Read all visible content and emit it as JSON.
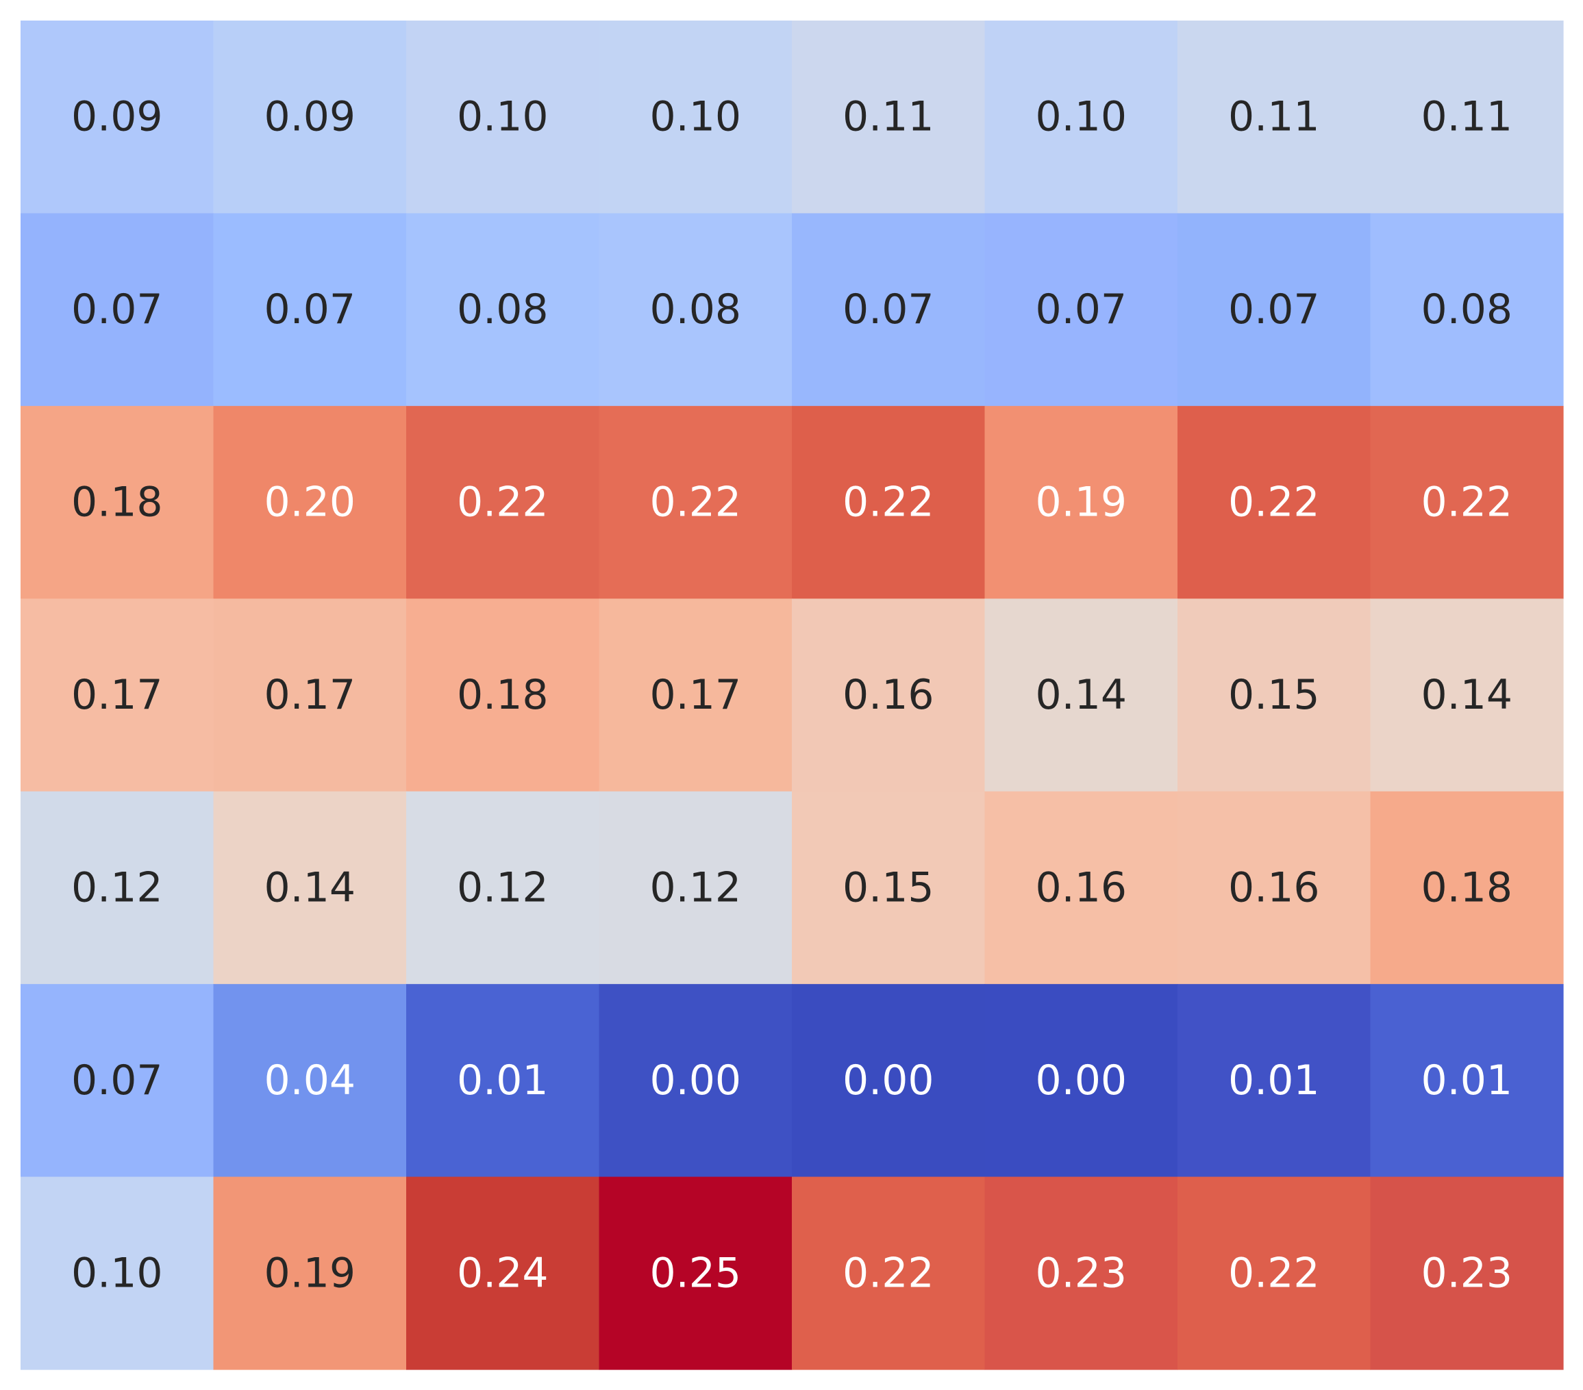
{
  "chart_data": {
    "type": "heatmap",
    "title": "",
    "xlabel": "",
    "ylabel": "",
    "colormap": "coolwarm",
    "value_range": [
      0.0,
      0.25
    ],
    "grid": false,
    "legend": "none",
    "values": [
      [
        0.09,
        0.09,
        0.1,
        0.1,
        0.11,
        0.1,
        0.11,
        0.11
      ],
      [
        0.07,
        0.07,
        0.08,
        0.08,
        0.07,
        0.07,
        0.07,
        0.08
      ],
      [
        0.18,
        0.2,
        0.22,
        0.22,
        0.22,
        0.19,
        0.22,
        0.22
      ],
      [
        0.17,
        0.17,
        0.18,
        0.17,
        0.16,
        0.14,
        0.15,
        0.14
      ],
      [
        0.12,
        0.14,
        0.12,
        0.12,
        0.15,
        0.16,
        0.16,
        0.18
      ],
      [
        0.07,
        0.04,
        0.01,
        0.0,
        0.0,
        0.0,
        0.01,
        0.01
      ],
      [
        0.1,
        0.19,
        0.24,
        0.25,
        0.22,
        0.23,
        0.22,
        0.23
      ]
    ],
    "labels": [
      [
        "0.09",
        "0.09",
        "0.10",
        "0.10",
        "0.11",
        "0.10",
        "0.11",
        "0.11"
      ],
      [
        "0.07",
        "0.07",
        "0.08",
        "0.08",
        "0.07",
        "0.07",
        "0.07",
        "0.08"
      ],
      [
        "0.18",
        "0.20",
        "0.22",
        "0.22",
        "0.22",
        "0.19",
        "0.22",
        "0.22"
      ],
      [
        "0.17",
        "0.17",
        "0.18",
        "0.17",
        "0.16",
        "0.14",
        "0.15",
        "0.14"
      ],
      [
        "0.12",
        "0.14",
        "0.12",
        "0.12",
        "0.15",
        "0.16",
        "0.16",
        "0.18"
      ],
      [
        "0.07",
        "0.04",
        "0.01",
        "0.00",
        "0.00",
        "0.00",
        "0.01",
        "0.01"
      ],
      [
        "0.10",
        "0.19",
        "0.24",
        "0.25",
        "0.22",
        "0.23",
        "0.22",
        "0.23"
      ]
    ],
    "colors": [
      [
        "#afc8fb",
        "#b8cff8",
        "#c2d3f4",
        "#c2d4f4",
        "#ccd7ee",
        "#bfd2f6",
        "#cad7ef",
        "#cad7ef"
      ],
      [
        "#94b3fd",
        "#9bbcff",
        "#a5c3fe",
        "#a9c5fd",
        "#98b7fd",
        "#97b4fe",
        "#92b3fc",
        "#9fbdfe"
      ],
      [
        "#f5a586",
        "#ef8769",
        "#e16752",
        "#e56d56",
        "#de5f4b",
        "#f29072",
        "#de5f4c",
        "#e16752"
      ],
      [
        "#f6bca3",
        "#f5baa0",
        "#f7ae91",
        "#f6b89c",
        "#f2c8b5",
        "#e6d7cf",
        "#f0cbba",
        "#ebd4c8"
      ],
      [
        "#d1dae9",
        "#ecd3c6",
        "#d7dce5",
        "#d8dbe3",
        "#f2c9b6",
        "#f6bfa6",
        "#f5c0a8",
        "#f6aa8b"
      ],
      [
        "#95b4fd",
        "#7293ee",
        "#4a63d3",
        "#3e51c4",
        "#3a4cc0",
        "#3a4cc1",
        "#4152c6",
        "#4a61d2"
      ],
      [
        "#c2d4f4",
        "#f29676",
        "#c93d35",
        "#b50426",
        "#df604c",
        "#d9554a",
        "#de5f4c",
        "#d6534a"
      ]
    ],
    "text_colors": [
      [
        "#262626",
        "#262626",
        "#262626",
        "#262626",
        "#262626",
        "#262626",
        "#262626",
        "#262626"
      ],
      [
        "#262626",
        "#262626",
        "#262626",
        "#262626",
        "#262626",
        "#262626",
        "#262626",
        "#262626"
      ],
      [
        "#262626",
        "#ffffff",
        "#ffffff",
        "#ffffff",
        "#ffffff",
        "#ffffff",
        "#ffffff",
        "#ffffff"
      ],
      [
        "#262626",
        "#262626",
        "#262626",
        "#262626",
        "#262626",
        "#262626",
        "#262626",
        "#262626"
      ],
      [
        "#262626",
        "#262626",
        "#262626",
        "#262626",
        "#262626",
        "#262626",
        "#262626",
        "#262626"
      ],
      [
        "#262626",
        "#ffffff",
        "#ffffff",
        "#ffffff",
        "#ffffff",
        "#ffffff",
        "#ffffff",
        "#ffffff"
      ],
      [
        "#262626",
        "#262626",
        "#ffffff",
        "#ffffff",
        "#ffffff",
        "#ffffff",
        "#ffffff",
        "#ffffff"
      ]
    ]
  }
}
